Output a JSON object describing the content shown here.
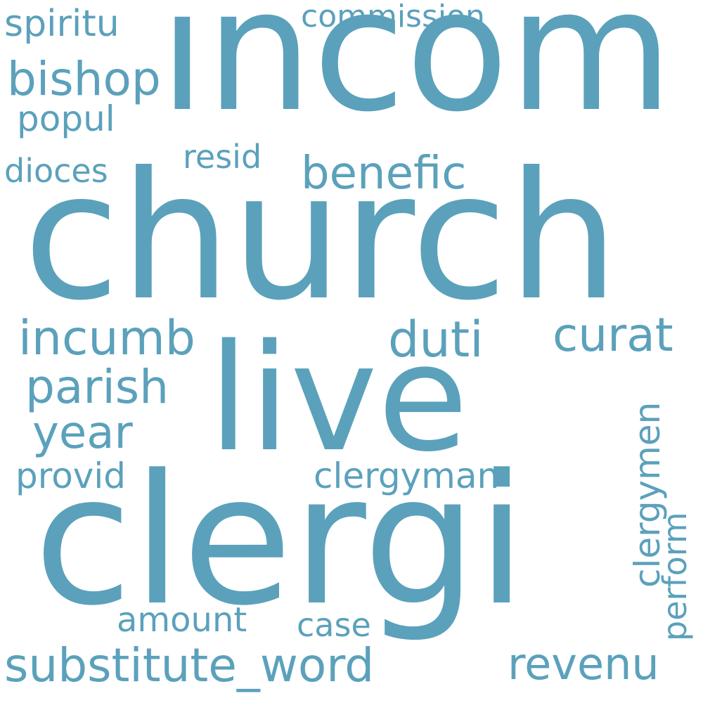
{
  "colors": {
    "background": "#ffffff",
    "word": "#5ba1bb"
  },
  "words": {
    "incom": "incom",
    "church": "church",
    "live": "live",
    "clergi": "clergi",
    "spiritu": "spiritu",
    "bishop": "bishop",
    "popul": "popul",
    "commission": "commission",
    "dioces": "dioces",
    "resid": "resid",
    "benefic": "benefic",
    "incumb": "incumb",
    "duti": "duti",
    "curat": "curat",
    "parish": "parish",
    "year": "year",
    "provid": "provid",
    "clergyman": "clergyman",
    "clergymen": "clergymen",
    "perform": "perform",
    "amount": "amount",
    "case": "case",
    "substitute_word": "substitute_word",
    "revenu": "revenu"
  }
}
